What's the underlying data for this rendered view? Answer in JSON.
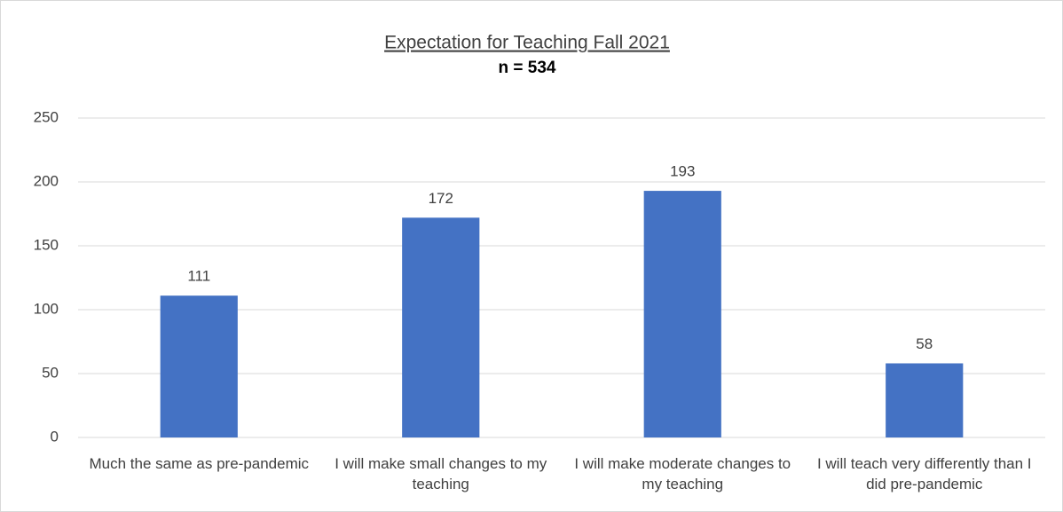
{
  "chart_data": {
    "type": "bar",
    "title": "Expectation for Teaching Fall 2021",
    "subtitle": "n = 534",
    "categories": [
      "Much the same as pre-pandemic",
      "I will make small changes to my teaching",
      "I will make moderate changes to my teaching",
      "I will teach very differently than I did pre-pandemic"
    ],
    "values": [
      111,
      172,
      193,
      58
    ],
    "color": "#4472c4",
    "ylim": [
      0,
      250
    ],
    "yticks": [
      0,
      50,
      100,
      150,
      200,
      250
    ],
    "grid": true
  }
}
